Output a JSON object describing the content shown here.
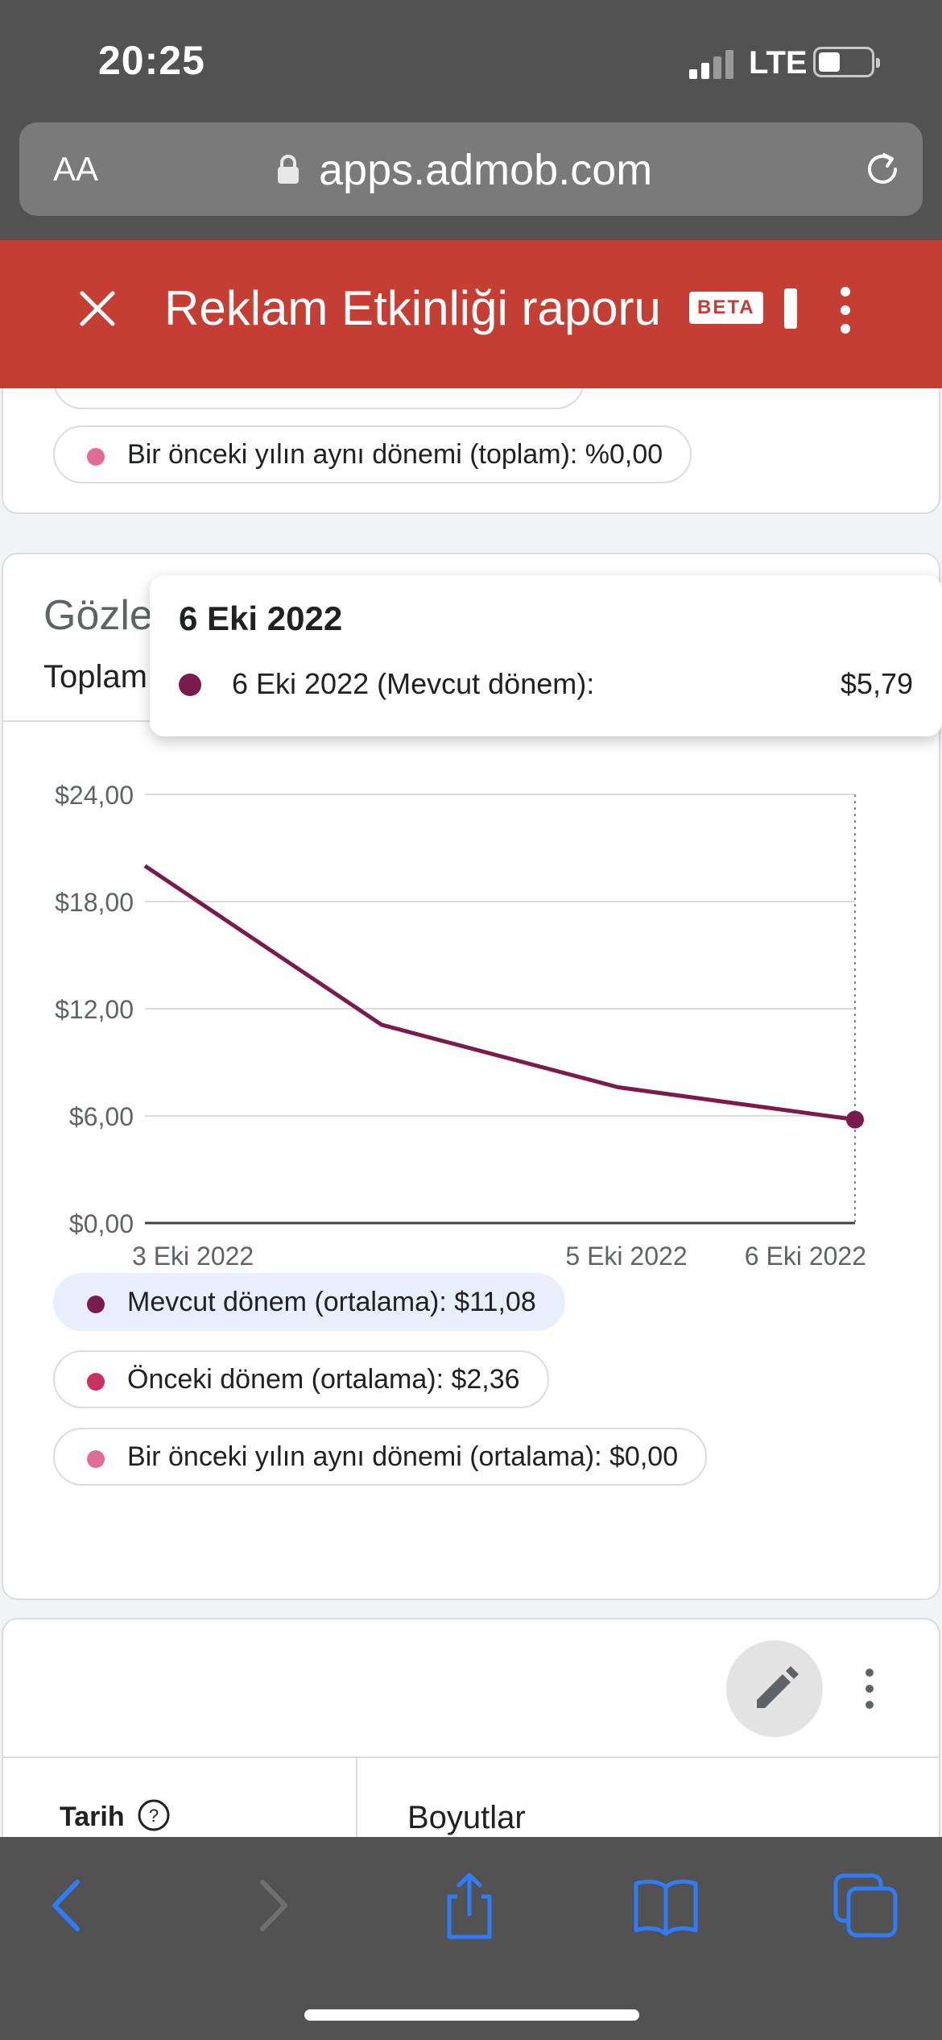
{
  "status_bar": {
    "time": "20:25",
    "network": "LTE"
  },
  "browser": {
    "text_size_label": "AA",
    "url": "apps.admob.com"
  },
  "header": {
    "title": "Reklam Etkinliği raporu",
    "badge": "BETA"
  },
  "card1": {
    "chip_label": "Bir önceki yılın aynı dönemi (toplam): %0,00",
    "chip_color": "#e16d96"
  },
  "card2": {
    "title": "Gözlemlenen eBGBM",
    "subtitle": "Toplam",
    "tooltip": {
      "title": "6 Eki 2022",
      "label": "6 Eki 2022 (Mevcut dönem):",
      "value": "$5,79"
    },
    "legend": [
      {
        "label": "Mevcut dönem (ortalama): $11,08",
        "color": "#7b1a4c"
      },
      {
        "label": "Önceki dönem (ortalama): $2,36",
        "color": "#c8325c"
      },
      {
        "label": "Bir önceki yılın aynı dönemi (ortalama): $0,00",
        "color": "#e16d96"
      }
    ]
  },
  "chart_data": {
    "type": "line",
    "title": "Gözlemlenen eBGBM",
    "xlabel": "",
    "ylabel": "",
    "x": [
      "3 Eki 2022",
      "4 Eki 2022",
      "5 Eki 2022",
      "6 Eki 2022"
    ],
    "x_tick_labels": [
      "3 Eki 2022",
      "5 Eki 2022",
      "6 Eki 2022"
    ],
    "y_tick_labels": [
      "$24,00",
      "$18,00",
      "$12,00",
      "$6,00",
      "$0,00"
    ],
    "ylim": [
      0,
      24
    ],
    "grid": true,
    "series": [
      {
        "name": "Mevcut dönem",
        "values": [
          20.0,
          11.1,
          7.6,
          5.79
        ],
        "color": "#7b1a4c"
      }
    ],
    "highlighted_point": {
      "x": "6 Eki 2022",
      "y": 5.79
    }
  },
  "card3": {
    "date_header": "Tarih",
    "dimensions_header": "Boyutlar"
  }
}
